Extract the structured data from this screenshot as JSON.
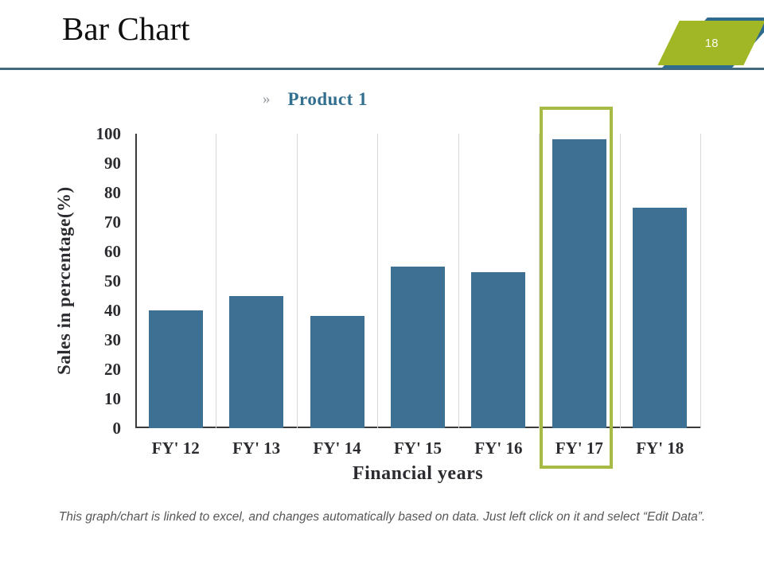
{
  "slide": {
    "title": "Bar Chart",
    "page_number": "18"
  },
  "legend": {
    "bullet": "»",
    "label": "Product 1"
  },
  "chart_data": {
    "type": "bar",
    "title": "Product 1",
    "categories": [
      "FY' 12",
      "FY' 13",
      "FY' 14",
      "FY' 15",
      "FY' 16",
      "FY' 17",
      "FY' 18"
    ],
    "values": [
      40,
      45,
      38,
      55,
      53,
      98,
      75
    ],
    "xlabel": "Financial years",
    "ylabel": "Sales in percentage(%)",
    "ylim": [
      0,
      100
    ],
    "ytick_step": 10,
    "grid": "vertical category separators only",
    "legend_position": "top-center",
    "bar_color": "#3E7093",
    "highlight": {
      "category": "FY' 17",
      "border_color": "#A7BB44"
    }
  },
  "footer": {
    "note": "This graph/chart is linked to excel, and changes automatically based on data. Just left click on it and select “Edit Data”."
  },
  "colors": {
    "bar": "#3E7093",
    "highlight_border": "#A7BB44",
    "divider": "#41687C",
    "badge_green": "#A2B726",
    "badge_blue": "#2F6A8F",
    "legend_label": "#33708F",
    "axis_text": "#2B2B30",
    "gridline": "#D8D8D8",
    "footer_text": "#57575A"
  }
}
